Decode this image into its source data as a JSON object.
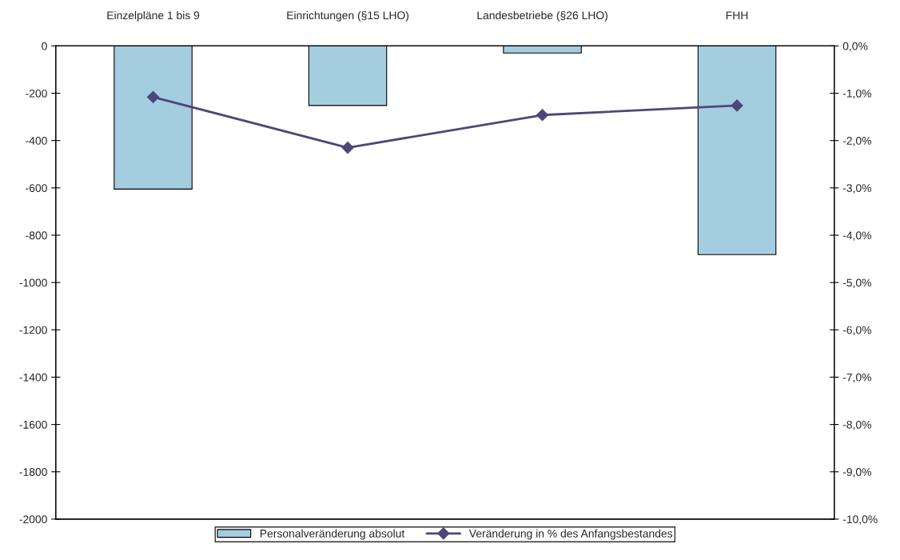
{
  "chart_data": {
    "type": "bar",
    "categories": [
      "Einzelpläne 1 bis 9",
      "Einrichtungen (§15 LHO)",
      "Landesbetriebe (§26 LHO)",
      "FHH"
    ],
    "series": [
      {
        "name": "Personalveränderung absolut",
        "color": "#a5cde0",
        "values": [
          -605,
          -252,
          -30,
          -882
        ]
      },
      {
        "name": "Veränderung in % des Anfangsbestandes",
        "type": "line",
        "axis": "y2",
        "color": "#4b4878",
        "marker": "diamond",
        "values": [
          -1.08,
          -2.15,
          -1.46,
          -1.26
        ]
      }
    ],
    "ylim": [
      -2000,
      0
    ],
    "yticks": [
      -2000,
      -1800,
      -1600,
      -1400,
      -1200,
      -1000,
      -800,
      -600,
      -400,
      -200,
      0
    ],
    "y2lim": [
      -10,
      0
    ],
    "y2ticks": [
      {
        "value": -10,
        "label": "-10,0%"
      },
      {
        "value": -9,
        "label": "-9,0%"
      },
      {
        "value": -8,
        "label": "-8,0%"
      },
      {
        "value": -7,
        "label": "-7,0%"
      },
      {
        "value": -6,
        "label": "-6,0%"
      },
      {
        "value": -5,
        "label": "-5,0%"
      },
      {
        "value": -4,
        "label": "-4,0%"
      },
      {
        "value": -3,
        "label": "-3,0%"
      },
      {
        "value": -2,
        "label": "-2,0%"
      },
      {
        "value": -1,
        "label": "-1,0%"
      },
      {
        "value": 0,
        "label": "0,0%"
      }
    ],
    "grid": false,
    "legend": "bottom"
  }
}
